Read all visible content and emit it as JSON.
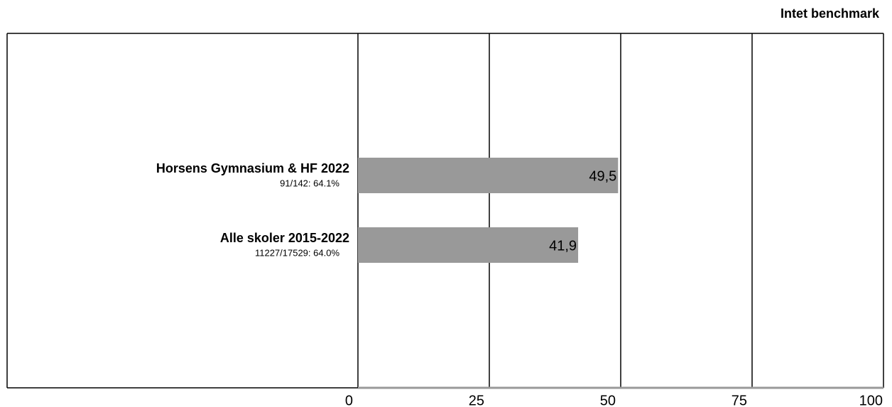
{
  "chart_data": {
    "type": "bar",
    "orientation": "horizontal",
    "title": "Intet benchmark",
    "categories": [
      "Horsens Gymnasium & HF 2022",
      "Alle skoler 2015-2022"
    ],
    "sublabels": [
      "91/142: 64.1%",
      "11227/17529: 64.0%"
    ],
    "values": [
      49.5,
      41.9
    ],
    "value_labels": [
      "49,5",
      "41,9"
    ],
    "color": "#999999",
    "xlim": [
      0,
      100
    ],
    "xticks": [
      0,
      25,
      50,
      75,
      100
    ],
    "grid": true
  }
}
